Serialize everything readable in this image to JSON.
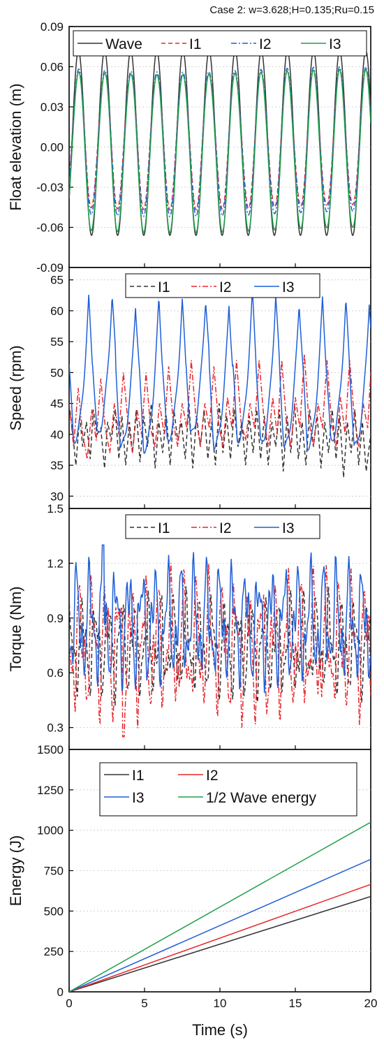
{
  "figure": {
    "annotation": "Case 2: w=3.628;H=0.135;Ru=0.15",
    "xlabel": "Time (s)",
    "xticks": [
      "0",
      "5",
      "10",
      "15",
      "20"
    ]
  },
  "chart_data": [
    {
      "type": "line",
      "ylabel": "Float elevation (m)",
      "xlim": [
        0,
        20
      ],
      "ylim": [
        -0.09,
        0.09
      ],
      "yticks": [
        "0.09",
        "0.06",
        "0.03",
        "0.00",
        "-0.03",
        "-0.06",
        "-0.09"
      ],
      "wave_period_s": 1.732,
      "series": [
        {
          "name": "Wave",
          "color": "#333333",
          "dash": "solid",
          "amplitude": 0.069,
          "offset": 0.003
        },
        {
          "name": "I1",
          "color": "#e8262c",
          "dash": "dashed",
          "max": 0.056,
          "min": -0.045
        },
        {
          "name": "I2",
          "color": "#1f5fd6",
          "dash": "dashdot",
          "max": 0.058,
          "min": -0.05
        },
        {
          "name": "I3",
          "color": "#1ea04a",
          "dash": "solid",
          "max": 0.056,
          "min": -0.062
        }
      ],
      "legend": "top"
    },
    {
      "type": "line",
      "ylabel": "Speed (rpm)",
      "xlim": [
        0,
        20
      ],
      "ylim": [
        28,
        67
      ],
      "yticks": [
        "65",
        "60",
        "55",
        "50",
        "45",
        "40",
        "35",
        "30"
      ],
      "series": [
        {
          "name": "I1",
          "color": "#333333",
          "dash": "dashed",
          "x": [
            0,
            0.2,
            0.45,
            0.7,
            0.9,
            1.15,
            1.4,
            1.6,
            1.85,
            2.1,
            2.35,
            2.55,
            2.8,
            3.05,
            3.3,
            3.5,
            3.75,
            4.0,
            4.2,
            4.45,
            4.7,
            4.95,
            5.2,
            5.45,
            5.7,
            5.95,
            6.2,
            6.45,
            6.7,
            6.95,
            7.2,
            7.45,
            7.7,
            7.95,
            8.2,
            8.45,
            8.7,
            8.95,
            9.2,
            9.45,
            9.7,
            9.95,
            10.2,
            10.45,
            10.7,
            10.95,
            11.2,
            11.45,
            11.7,
            11.95,
            12.2,
            12.45,
            12.7,
            12.95,
            13.2,
            13.45,
            13.7,
            13.95,
            14.2,
            14.45,
            14.7,
            14.95,
            15.2,
            15.45,
            15.7,
            15.95,
            16.2,
            16.45,
            16.7,
            16.95,
            17.2,
            17.45,
            17.7,
            17.95,
            18.2,
            18.45,
            18.7,
            18.95,
            19.2,
            19.45,
            19.7,
            20.0
          ],
          "values": [
            45,
            41,
            35,
            43,
            38,
            42,
            36,
            44,
            40,
            41,
            34.5,
            42,
            39,
            44,
            36,
            43,
            35,
            42,
            37,
            44,
            35.5,
            43,
            38,
            45,
            34.5,
            42,
            37,
            43,
            35,
            44,
            39,
            42,
            36,
            45,
            34.5,
            43,
            38,
            44,
            36,
            42,
            35,
            45,
            37,
            43,
            36,
            44,
            38,
            42,
            35,
            43,
            37,
            44,
            36,
            43,
            35,
            42,
            38,
            44,
            34,
            43,
            37,
            45,
            36,
            42,
            35,
            44,
            38,
            43,
            34.5,
            42,
            37,
            44,
            36,
            43,
            33,
            42,
            37,
            44,
            35,
            42,
            34,
            40
          ]
        },
        {
          "name": "I2",
          "color": "#e8262c",
          "dash": "dashdot",
          "x": [
            0,
            0.3,
            0.6,
            0.9,
            1.2,
            1.5,
            1.8,
            2.1,
            2.4,
            2.7,
            3.0,
            3.3,
            3.6,
            3.9,
            4.2,
            4.5,
            4.8,
            5.1,
            5.4,
            5.7,
            6.0,
            6.3,
            6.6,
            6.9,
            7.2,
            7.5,
            7.8,
            8.1,
            8.4,
            8.7,
            9.0,
            9.3,
            9.6,
            9.9,
            10.2,
            10.5,
            10.8,
            11.1,
            11.4,
            11.7,
            12.0,
            12.3,
            12.6,
            12.9,
            13.2,
            13.5,
            13.8,
            14.1,
            14.4,
            14.7,
            15.0,
            15.3,
            15.6,
            15.9,
            16.2,
            16.5,
            16.8,
            17.1,
            17.4,
            17.7,
            18.0,
            18.3,
            18.6,
            18.9,
            19.2,
            19.5,
            19.8,
            20.0
          ],
          "values": [
            45,
            38,
            47.5,
            40,
            36,
            44,
            39,
            49,
            41,
            37,
            45,
            40,
            50,
            42,
            37,
            44,
            40,
            50,
            41,
            38,
            45,
            40,
            51,
            42,
            38,
            45,
            41,
            52,
            43,
            38,
            45,
            41,
            51,
            42,
            38,
            46,
            41,
            52,
            42,
            39,
            45,
            41,
            52,
            43,
            38,
            46,
            40,
            52,
            42,
            38,
            46,
            41,
            53,
            42,
            38,
            45,
            41,
            52,
            42,
            38,
            46,
            40,
            52,
            43,
            38,
            45,
            41,
            50
          ]
        },
        {
          "name": "I3",
          "color": "#1f5fd6",
          "dash": "solid",
          "peaks": [
            62,
            62.5,
            61,
            62,
            61.5,
            62,
            61,
            63,
            62.5,
            61.5,
            62,
            61.5,
            61.5
          ],
          "troughs": [
            39,
            40,
            38,
            37.5,
            39,
            40,
            38,
            39,
            38.5,
            38,
            38,
            39,
            38
          ]
        }
      ],
      "legend": "top"
    },
    {
      "type": "line",
      "ylabel": "Torque (Nm)",
      "xlim": [
        0,
        20
      ],
      "ylim": [
        0.18,
        1.5
      ],
      "yticks": [
        "1.5",
        "1.2",
        "0.9",
        "0.6",
        "0.3"
      ],
      "series": [
        {
          "name": "I1",
          "color": "#333333",
          "dash": "dashed",
          "min": 0.4,
          "max": 1.1
        },
        {
          "name": "I2",
          "color": "#e8262c",
          "dash": "dashdot",
          "min": 0.25,
          "max": 1.25
        },
        {
          "name": "I3",
          "color": "#1f5fd6",
          "dash": "solid",
          "min": 0.45,
          "max": 1.3
        }
      ],
      "legend": "top"
    },
    {
      "type": "line",
      "ylabel": "Energy (J)",
      "xlim": [
        0,
        20
      ],
      "ylim": [
        0,
        1500
      ],
      "yticks": [
        "1500",
        "1250",
        "1000",
        "750",
        "500",
        "250",
        "0"
      ],
      "series": [
        {
          "name": "I1",
          "color": "#333333",
          "x": [
            0,
            20
          ],
          "values": [
            0,
            590
          ]
        },
        {
          "name": "I2",
          "color": "#e8262c",
          "x": [
            0,
            20
          ],
          "values": [
            0,
            665
          ]
        },
        {
          "name": "I3",
          "color": "#1f5fd6",
          "x": [
            0,
            20
          ],
          "values": [
            0,
            820
          ]
        },
        {
          "name": "1/2 Wave energy",
          "color": "#1ea04a",
          "x": [
            0,
            20
          ],
          "values": [
            0,
            1050
          ]
        }
      ],
      "legend": "top"
    }
  ]
}
